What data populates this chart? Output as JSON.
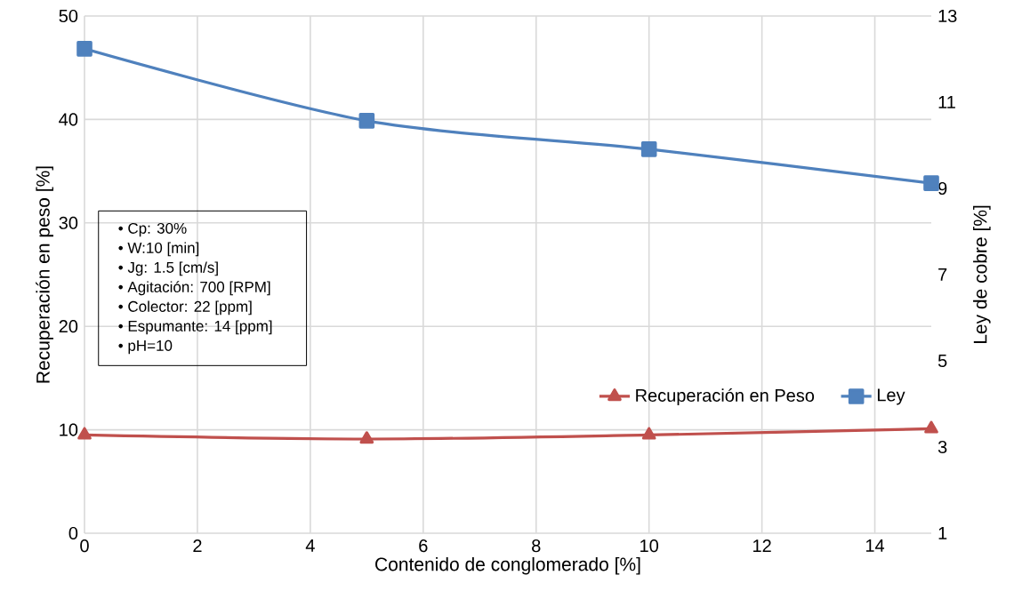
{
  "chart_data": {
    "type": "line",
    "xlabel": "Contenido de conglomerado [%]",
    "ylabel": "Recuperación en peso  [%]",
    "y2label": "Ley de cobre [%]",
    "x": [
      0,
      5,
      10,
      15
    ],
    "series": [
      {
        "name": "Recuperación en Peso",
        "color": "#c0504d",
        "marker": "triangle",
        "values": [
          9.5,
          9.1,
          9.5,
          10.1
        ]
      },
      {
        "name": "Ley",
        "color": "#4f81bd",
        "marker": "square",
        "axis": "y2",
        "values": [
          12.24,
          10.57,
          9.91,
          9.12
        ]
      }
    ],
    "xlim": [
      0,
      15
    ],
    "xticks": [
      0,
      2,
      4,
      6,
      8,
      10,
      12,
      14
    ],
    "ylim": [
      0,
      50
    ],
    "yticks": [
      0,
      10,
      20,
      30,
      40,
      50
    ],
    "y2lim": [
      1,
      13
    ],
    "y2ticks": [
      1,
      3,
      5,
      7,
      9,
      11,
      13
    ],
    "grid": true,
    "legend": "bottom right",
    "annotations": [
      "•  Cp: 30%",
      "•  W:10 [min]",
      "•  Jg: 1.5 [cm/s]",
      "•  Agitación: 700 [RPM]",
      "•  Colector: 22 [ppm]",
      "•  Espumante: 14 [ppm]",
      "•  pH=10"
    ]
  }
}
